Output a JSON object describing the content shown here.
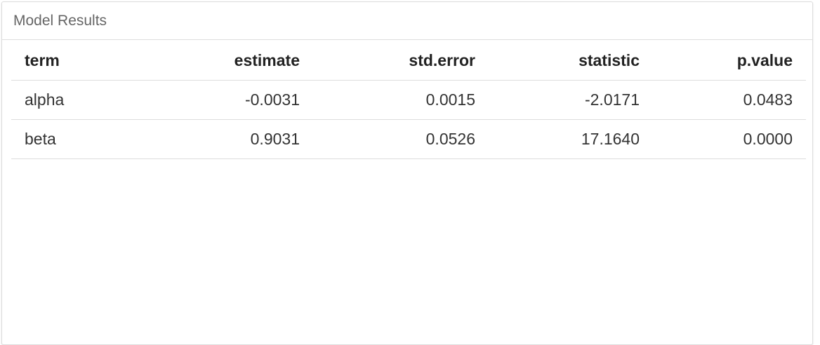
{
  "panel": {
    "title": "Model Results"
  },
  "table": {
    "headers": {
      "term": "term",
      "estimate": "estimate",
      "std_error": "std.error",
      "statistic": "statistic",
      "p_value": "p.value"
    },
    "rows": [
      {
        "term": "alpha",
        "estimate": "-0.0031",
        "std_error": "0.0015",
        "statistic": "-2.0171",
        "p_value": "0.0483"
      },
      {
        "term": "beta",
        "estimate": "0.9031",
        "std_error": "0.0526",
        "statistic": "17.1640",
        "p_value": "0.0000"
      }
    ]
  },
  "colors": {
    "border": "#dddddd",
    "header_text": "#666666",
    "body_text": "#333333"
  }
}
